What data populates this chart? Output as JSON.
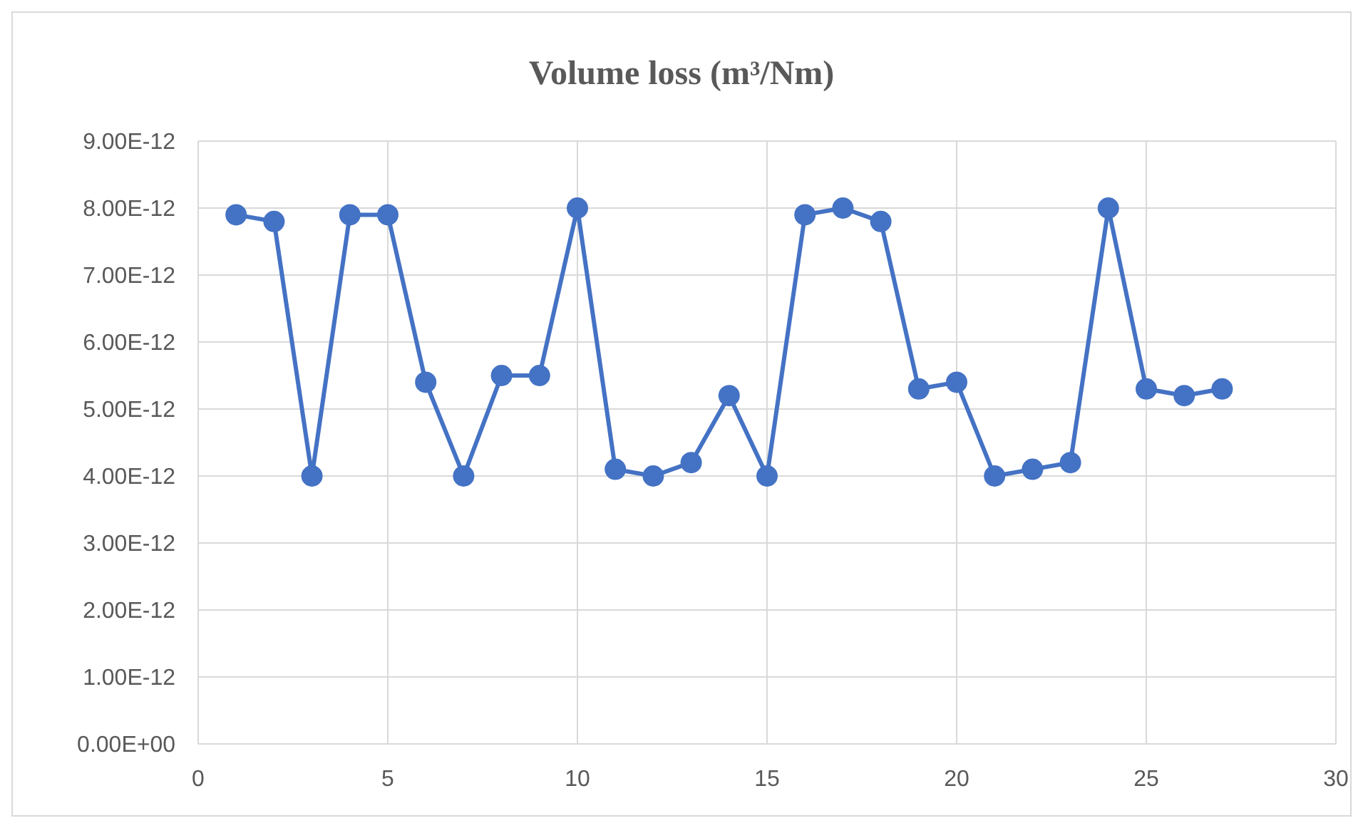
{
  "chart_data": {
    "type": "line",
    "title": "Volume loss (m³/Nm)",
    "x": [
      1,
      2,
      3,
      4,
      5,
      6,
      7,
      8,
      9,
      10,
      11,
      12,
      13,
      14,
      15,
      16,
      17,
      18,
      19,
      20,
      21,
      22,
      23,
      24,
      25,
      26,
      27
    ],
    "series": [
      {
        "color": "#4472c4",
        "values": [
          7.9e-12,
          7.8e-12,
          4e-12,
          7.9e-12,
          7.9e-12,
          5.4e-12,
          4e-12,
          5.5e-12,
          5.5e-12,
          8e-12,
          4.1e-12,
          4e-12,
          4.2e-12,
          5.2e-12,
          4e-12,
          7.9e-12,
          8e-12,
          7.8e-12,
          5.3e-12,
          5.4e-12,
          4e-12,
          4.1e-12,
          4.2e-12,
          8e-12,
          5.3e-12,
          5.2e-12,
          5.3e-12
        ]
      }
    ],
    "xlim": [
      0,
      30
    ],
    "xticks": [
      0,
      5,
      10,
      15,
      20,
      25,
      30
    ],
    "ylim": [
      0,
      9e-12
    ],
    "yticks": [
      {
        "value": 0,
        "label": "0.00E+00"
      },
      {
        "value": 1e-12,
        "label": "1.00E-12"
      },
      {
        "value": 2e-12,
        "label": "2.00E-12"
      },
      {
        "value": 3e-12,
        "label": "3.00E-12"
      },
      {
        "value": 4e-12,
        "label": "4.00E-12"
      },
      {
        "value": 5e-12,
        "label": "5.00E-12"
      },
      {
        "value": 6e-12,
        "label": "6.00E-12"
      },
      {
        "value": 7e-12,
        "label": "7.00E-12"
      },
      {
        "value": 8e-12,
        "label": "8.00E-12"
      },
      {
        "value": 9e-12,
        "label": "9.00E-12"
      }
    ],
    "grid": true,
    "marker": "circle",
    "line_style": "solid",
    "legend": false
  }
}
